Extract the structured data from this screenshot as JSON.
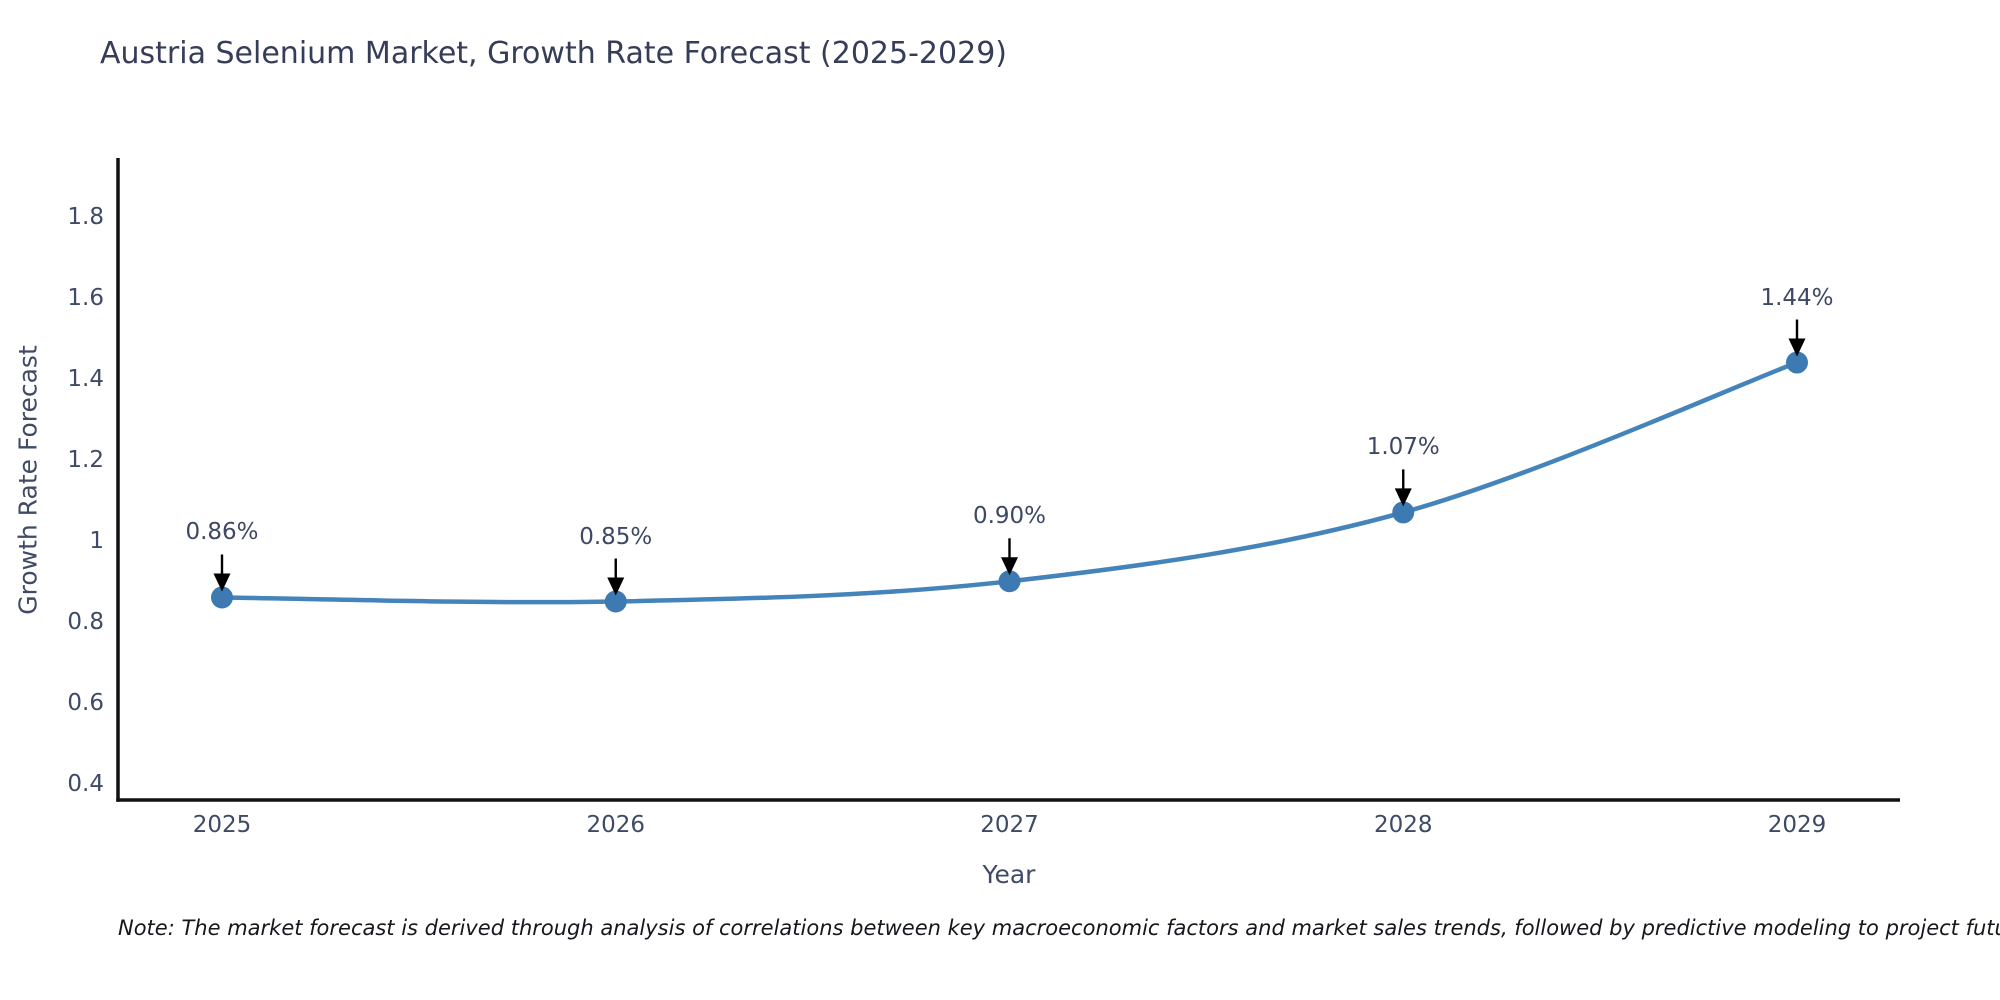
{
  "chart_data": {
    "type": "line",
    "title": "Austria Selenium Market, Growth Rate Forecast (2025-2029)",
    "xlabel": "Year",
    "ylabel": "Growth Rate Forecast",
    "categories": [
      "2025",
      "2026",
      "2027",
      "2028",
      "2029"
    ],
    "series": [
      {
        "name": "Growth Rate Forecast",
        "values": [
          0.86,
          0.85,
          0.9,
          1.07,
          1.44
        ]
      }
    ],
    "point_labels": [
      "0.86%",
      "0.85%",
      "0.90%",
      "1.07%",
      "1.44%"
    ],
    "ytick_labels": [
      "0.4",
      "0.6",
      "0.8",
      "1",
      "1.2",
      "1.4",
      "1.6",
      "1.8"
    ],
    "ytick_values": [
      0.4,
      0.6,
      0.8,
      1.0,
      1.2,
      1.4,
      1.6,
      1.8
    ],
    "ylim": [
      0.36,
      1.94
    ],
    "grid": false,
    "legend": false,
    "line_shape": "spline",
    "annotation_style": "down-arrow",
    "colors": {
      "line": "#4584ba",
      "marker": "#3d7ab2",
      "arrow": "#000000",
      "axis": "#111111",
      "tick_text": "#3e4a66",
      "title_text": "#353d58"
    }
  },
  "note": "Note: The market forecast is derived through analysis of correlations between key macroeconomic factors and market sales trends, followed by predictive modeling to project future sales"
}
